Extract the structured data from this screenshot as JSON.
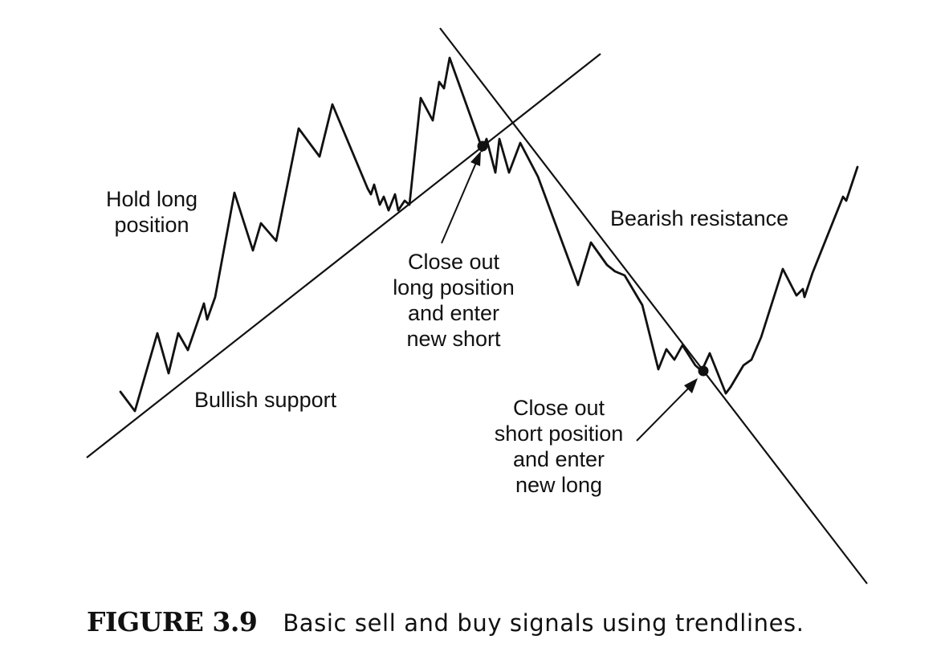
{
  "labels": {
    "hold_long": [
      "Hold long",
      "position"
    ],
    "bearish_resistance": "Bearish resistance",
    "bullish_support": "Bullish support",
    "close_long": [
      "Close out",
      "long position",
      "and enter",
      "new short"
    ],
    "close_short": [
      "Close out",
      "short position",
      "and enter",
      "new long"
    ]
  },
  "caption": {
    "number": "FIGURE 3.9",
    "text": "Basic sell and buy signals using trendlines."
  },
  "colors": {
    "ink": "#111111",
    "background": "#ffffff"
  }
}
